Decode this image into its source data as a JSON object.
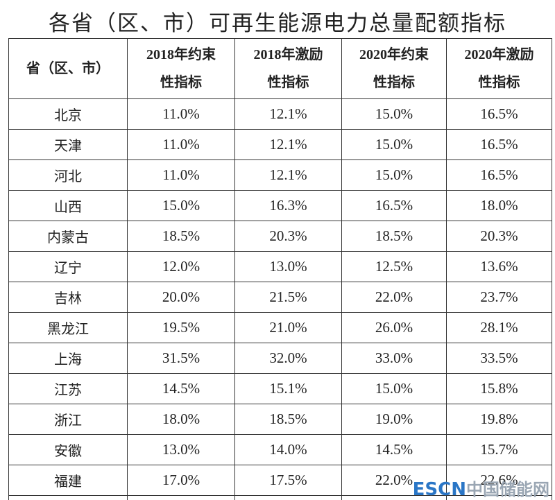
{
  "title": "各省（区、市）可再生能源电力总量配额指标",
  "table": {
    "header": [
      [
        "省（区、市）"
      ],
      [
        "2018年约束",
        "性指标"
      ],
      [
        "2018年激励",
        "性指标"
      ],
      [
        "2020年约束",
        "性指标"
      ],
      [
        "2020年激励",
        "性指标"
      ]
    ],
    "rows": [
      [
        "北京",
        "11.0%",
        "12.1%",
        "15.0%",
        "16.5%"
      ],
      [
        "天津",
        "11.0%",
        "12.1%",
        "15.0%",
        "16.5%"
      ],
      [
        "河北",
        "11.0%",
        "12.1%",
        "15.0%",
        "16.5%"
      ],
      [
        "山西",
        "15.0%",
        "16.3%",
        "16.5%",
        "18.0%"
      ],
      [
        "内蒙古",
        "18.5%",
        "20.3%",
        "18.5%",
        "20.3%"
      ],
      [
        "辽宁",
        "12.0%",
        "13.0%",
        "12.5%",
        "13.6%"
      ],
      [
        "吉林",
        "20.0%",
        "21.5%",
        "22.0%",
        "23.7%"
      ],
      [
        "黑龙江",
        "19.5%",
        "21.0%",
        "26.0%",
        "28.1%"
      ],
      [
        "上海",
        "31.5%",
        "32.0%",
        "33.0%",
        "33.5%"
      ],
      [
        "江苏",
        "14.5%",
        "15.1%",
        "15.0%",
        "15.8%"
      ],
      [
        "浙江",
        "18.0%",
        "18.5%",
        "19.0%",
        "19.8%"
      ],
      [
        "安徽",
        "13.0%",
        "14.0%",
        "14.5%",
        "15.7%"
      ],
      [
        "福建",
        "17.0%",
        "17.5%",
        "22.0%",
        "22.6%"
      ]
    ]
  },
  "watermark": {
    "brand": "ESCN",
    "site": "中国储能网"
  }
}
